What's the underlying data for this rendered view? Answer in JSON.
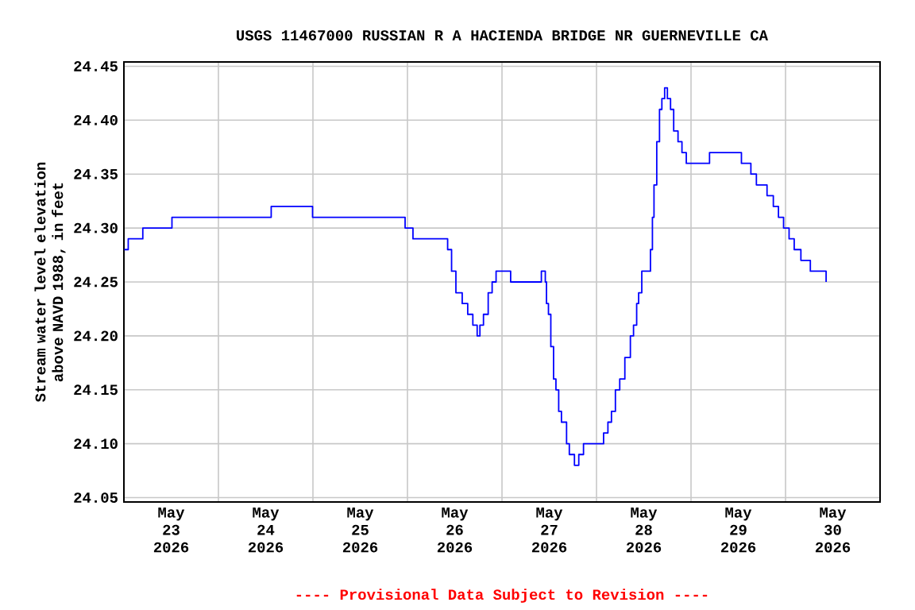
{
  "chart_data": {
    "type": "step",
    "title": "USGS 11467000 RUSSIAN R A HACIENDA BRIDGE NR GUERNEVILLE CA",
    "ylabel": "Stream water level elevation above NAVD 1988, in feet",
    "annotations": [
      "---- Provisional Data Subject to Revision ----"
    ],
    "xlim": [
      "2026-05-23T00:00",
      "2026-05-31T00:00"
    ],
    "xticks": [
      {
        "value": "2026-05-23T00:00",
        "label": null
      },
      {
        "value": "2026-05-23T12:00",
        "label": "May 23 2026"
      },
      {
        "value": "2026-05-24T00:00",
        "label": null
      },
      {
        "value": "2026-05-24T12:00",
        "label": "May 24 2026"
      },
      {
        "value": "2026-05-25T00:00",
        "label": null
      },
      {
        "value": "2026-05-25T12:00",
        "label": "May 25 2026"
      },
      {
        "value": "2026-05-26T00:00",
        "label": null
      },
      {
        "value": "2026-05-26T12:00",
        "label": "May 26 2026"
      },
      {
        "value": "2026-05-27T00:00",
        "label": null
      },
      {
        "value": "2026-05-27T12:00",
        "label": "May 27 2026"
      },
      {
        "value": "2026-05-28T00:00",
        "label": null
      },
      {
        "value": "2026-05-28T12:00",
        "label": "May 28 2026"
      },
      {
        "value": "2026-05-29T00:00",
        "label": null
      },
      {
        "value": "2026-05-29T12:00",
        "label": "May 29 2026"
      },
      {
        "value": "2026-05-30T00:00",
        "label": null
      },
      {
        "value": "2026-05-30T12:00",
        "label": "May 30 2026"
      },
      {
        "value": "2026-05-31T00:00",
        "label": null
      }
    ],
    "ylim": [
      24.046,
      24.454
    ],
    "yticks": [
      24.05,
      {
        "value": 24.1,
        "label": "24.10"
      },
      24.15,
      {
        "value": 24.2,
        "label": "24.20"
      },
      24.25,
      {
        "value": 24.3,
        "label": "24.30"
      },
      24.35,
      {
        "value": 24.4,
        "label": "24.40"
      },
      24.45
    ],
    "grid": true,
    "series": [
      {
        "color": "#0000ff",
        "x": [
          "2026-05-23T00:06",
          "2026-05-23T01:06",
          "2026-05-23T04:48",
          "2026-05-23T12:12",
          "2026-05-24T13:24",
          "2026-05-24T23:54",
          "2026-05-25T23:24",
          "2026-05-26T01:24",
          "2026-05-26T10:12",
          "2026-05-26T11:12",
          "2026-05-26T12:18",
          "2026-05-26T13:54",
          "2026-05-26T15:18",
          "2026-05-26T16:36",
          "2026-05-26T17:42",
          "2026-05-26T18:24",
          "2026-05-26T19:18",
          "2026-05-26T20:30",
          "2026-05-26T21:30",
          "2026-05-26T22:30",
          "2026-05-27T02:12",
          "2026-05-27T10:00",
          "2026-05-27T11:00",
          "2026-05-27T11:18",
          "2026-05-27T11:48",
          "2026-05-27T12:24",
          "2026-05-27T13:06",
          "2026-05-27T13:42",
          "2026-05-27T14:24",
          "2026-05-27T15:06",
          "2026-05-27T16:24",
          "2026-05-27T17:06",
          "2026-05-27T18:24",
          "2026-05-27T19:30",
          "2026-05-27T20:42",
          "2026-05-28T01:48",
          "2026-05-28T02:54",
          "2026-05-28T03:48",
          "2026-05-28T04:48",
          "2026-05-28T05:54",
          "2026-05-28T07:12",
          "2026-05-28T08:36",
          "2026-05-28T09:24",
          "2026-05-28T10:12",
          "2026-05-28T10:42",
          "2026-05-28T11:30",
          "2026-05-28T13:42",
          "2026-05-28T14:12",
          "2026-05-28T14:36",
          "2026-05-28T15:18",
          "2026-05-28T16:00",
          "2026-05-28T16:36",
          "2026-05-28T17:18",
          "2026-05-28T18:00",
          "2026-05-28T18:48",
          "2026-05-28T19:36",
          "2026-05-28T20:42",
          "2026-05-28T21:42",
          "2026-05-28T22:48",
          "2026-05-29T04:42",
          "2026-05-29T12:48",
          "2026-05-29T15:12",
          "2026-05-29T16:36",
          "2026-05-29T19:18",
          "2026-05-29T20:54",
          "2026-05-29T22:12",
          "2026-05-29T23:30",
          "2026-05-30T00:54",
          "2026-05-30T02:12",
          "2026-05-30T03:54",
          "2026-05-30T06:18",
          "2026-05-30T10:18"
        ],
        "values": [
          24.28,
          24.29,
          24.3,
          24.31,
          24.32,
          24.31,
          24.3,
          24.29,
          24.28,
          24.26,
          24.24,
          24.23,
          24.22,
          24.21,
          24.2,
          24.21,
          24.22,
          24.24,
          24.25,
          24.26,
          24.25,
          24.26,
          24.25,
          24.23,
          24.22,
          24.19,
          24.16,
          24.15,
          24.13,
          24.12,
          24.1,
          24.09,
          24.08,
          24.09,
          24.1,
          24.11,
          24.12,
          24.13,
          24.15,
          24.16,
          24.18,
          24.2,
          24.21,
          24.23,
          24.24,
          24.26,
          24.28,
          24.31,
          24.34,
          24.38,
          24.41,
          24.42,
          24.43,
          24.42,
          24.41,
          24.39,
          24.38,
          24.37,
          24.36,
          24.37,
          24.36,
          24.35,
          24.34,
          24.33,
          24.32,
          24.31,
          24.3,
          24.29,
          24.28,
          24.27,
          24.26,
          24.25
        ]
      }
    ]
  }
}
